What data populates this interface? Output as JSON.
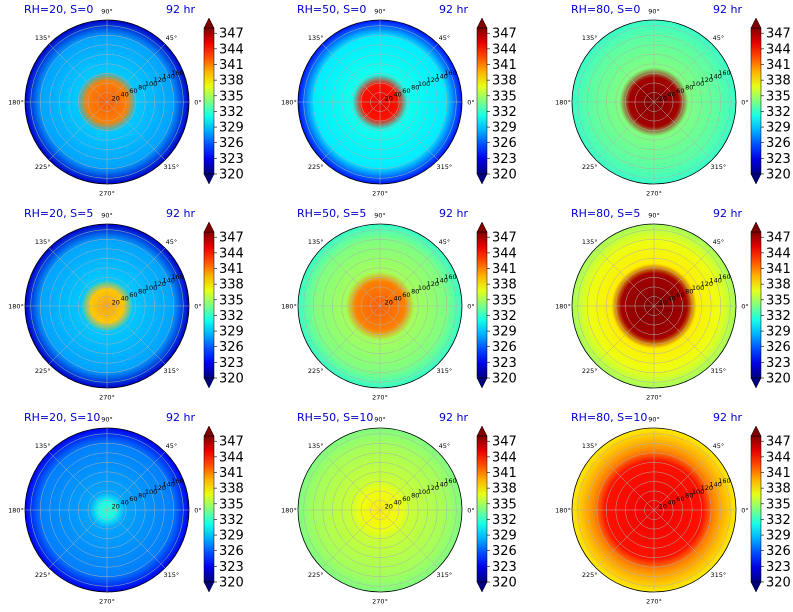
{
  "chart_data": {
    "type": "heatmap",
    "projection": "polar",
    "colorbar": {
      "ticks": [
        "320",
        "323",
        "326",
        "329",
        "332",
        "335",
        "338",
        "341",
        "344",
        "347"
      ],
      "vmin": 320,
      "vmax": 348,
      "colormap": "jet",
      "extend": "both"
    },
    "angle_labels": [
      "90°",
      "45°",
      "0°",
      "315°",
      "270°",
      "225°",
      "180°",
      "135°"
    ],
    "radius_labels": [
      "20",
      "40",
      "60",
      "80",
      "100",
      "120",
      "140",
      "160"
    ],
    "rows": [
      {
        "panels": [
          {
            "title": "RH=20, S=0",
            "time": "92 hr",
            "core_value": 342,
            "core_extent": 0.25,
            "env_value": 328,
            "edge_value": 322
          },
          {
            "title": "RH=50, S=0",
            "time": "92 hr",
            "core_value": 345,
            "core_extent": 0.22,
            "env_value": 330,
            "edge_value": 324
          },
          {
            "title": "RH=80, S=0",
            "time": "92 hr",
            "core_value": 348,
            "core_extent": 0.3,
            "env_value": 333,
            "edge_value": 332
          }
        ]
      },
      {
        "panels": [
          {
            "title": "RH=20, S=5",
            "time": "92 hr",
            "core_value": 340,
            "core_extent": 0.2,
            "env_value": 328,
            "edge_value": 322
          },
          {
            "title": "RH=50, S=5",
            "time": "92 hr",
            "core_value": 342,
            "core_extent": 0.3,
            "env_value": 334,
            "edge_value": 332
          },
          {
            "title": "RH=80, S=5",
            "time": "92 hr",
            "core_value": 348,
            "core_extent": 0.4,
            "env_value": 337,
            "edge_value": 335
          }
        ]
      },
      {
        "panels": [
          {
            "title": "RH=20, S=10",
            "time": "92 hr",
            "core_value": 332,
            "core_extent": 0.1,
            "env_value": 327,
            "edge_value": 323
          },
          {
            "title": "RH=50, S=10",
            "time": "92 hr",
            "core_value": 338,
            "core_extent": 0.25,
            "env_value": 335,
            "edge_value": 334
          },
          {
            "title": "RH=80, S=10",
            "time": "92 hr",
            "core_value": 345,
            "core_extent": 0.6,
            "env_value": 340,
            "edge_value": 338
          }
        ]
      }
    ]
  }
}
